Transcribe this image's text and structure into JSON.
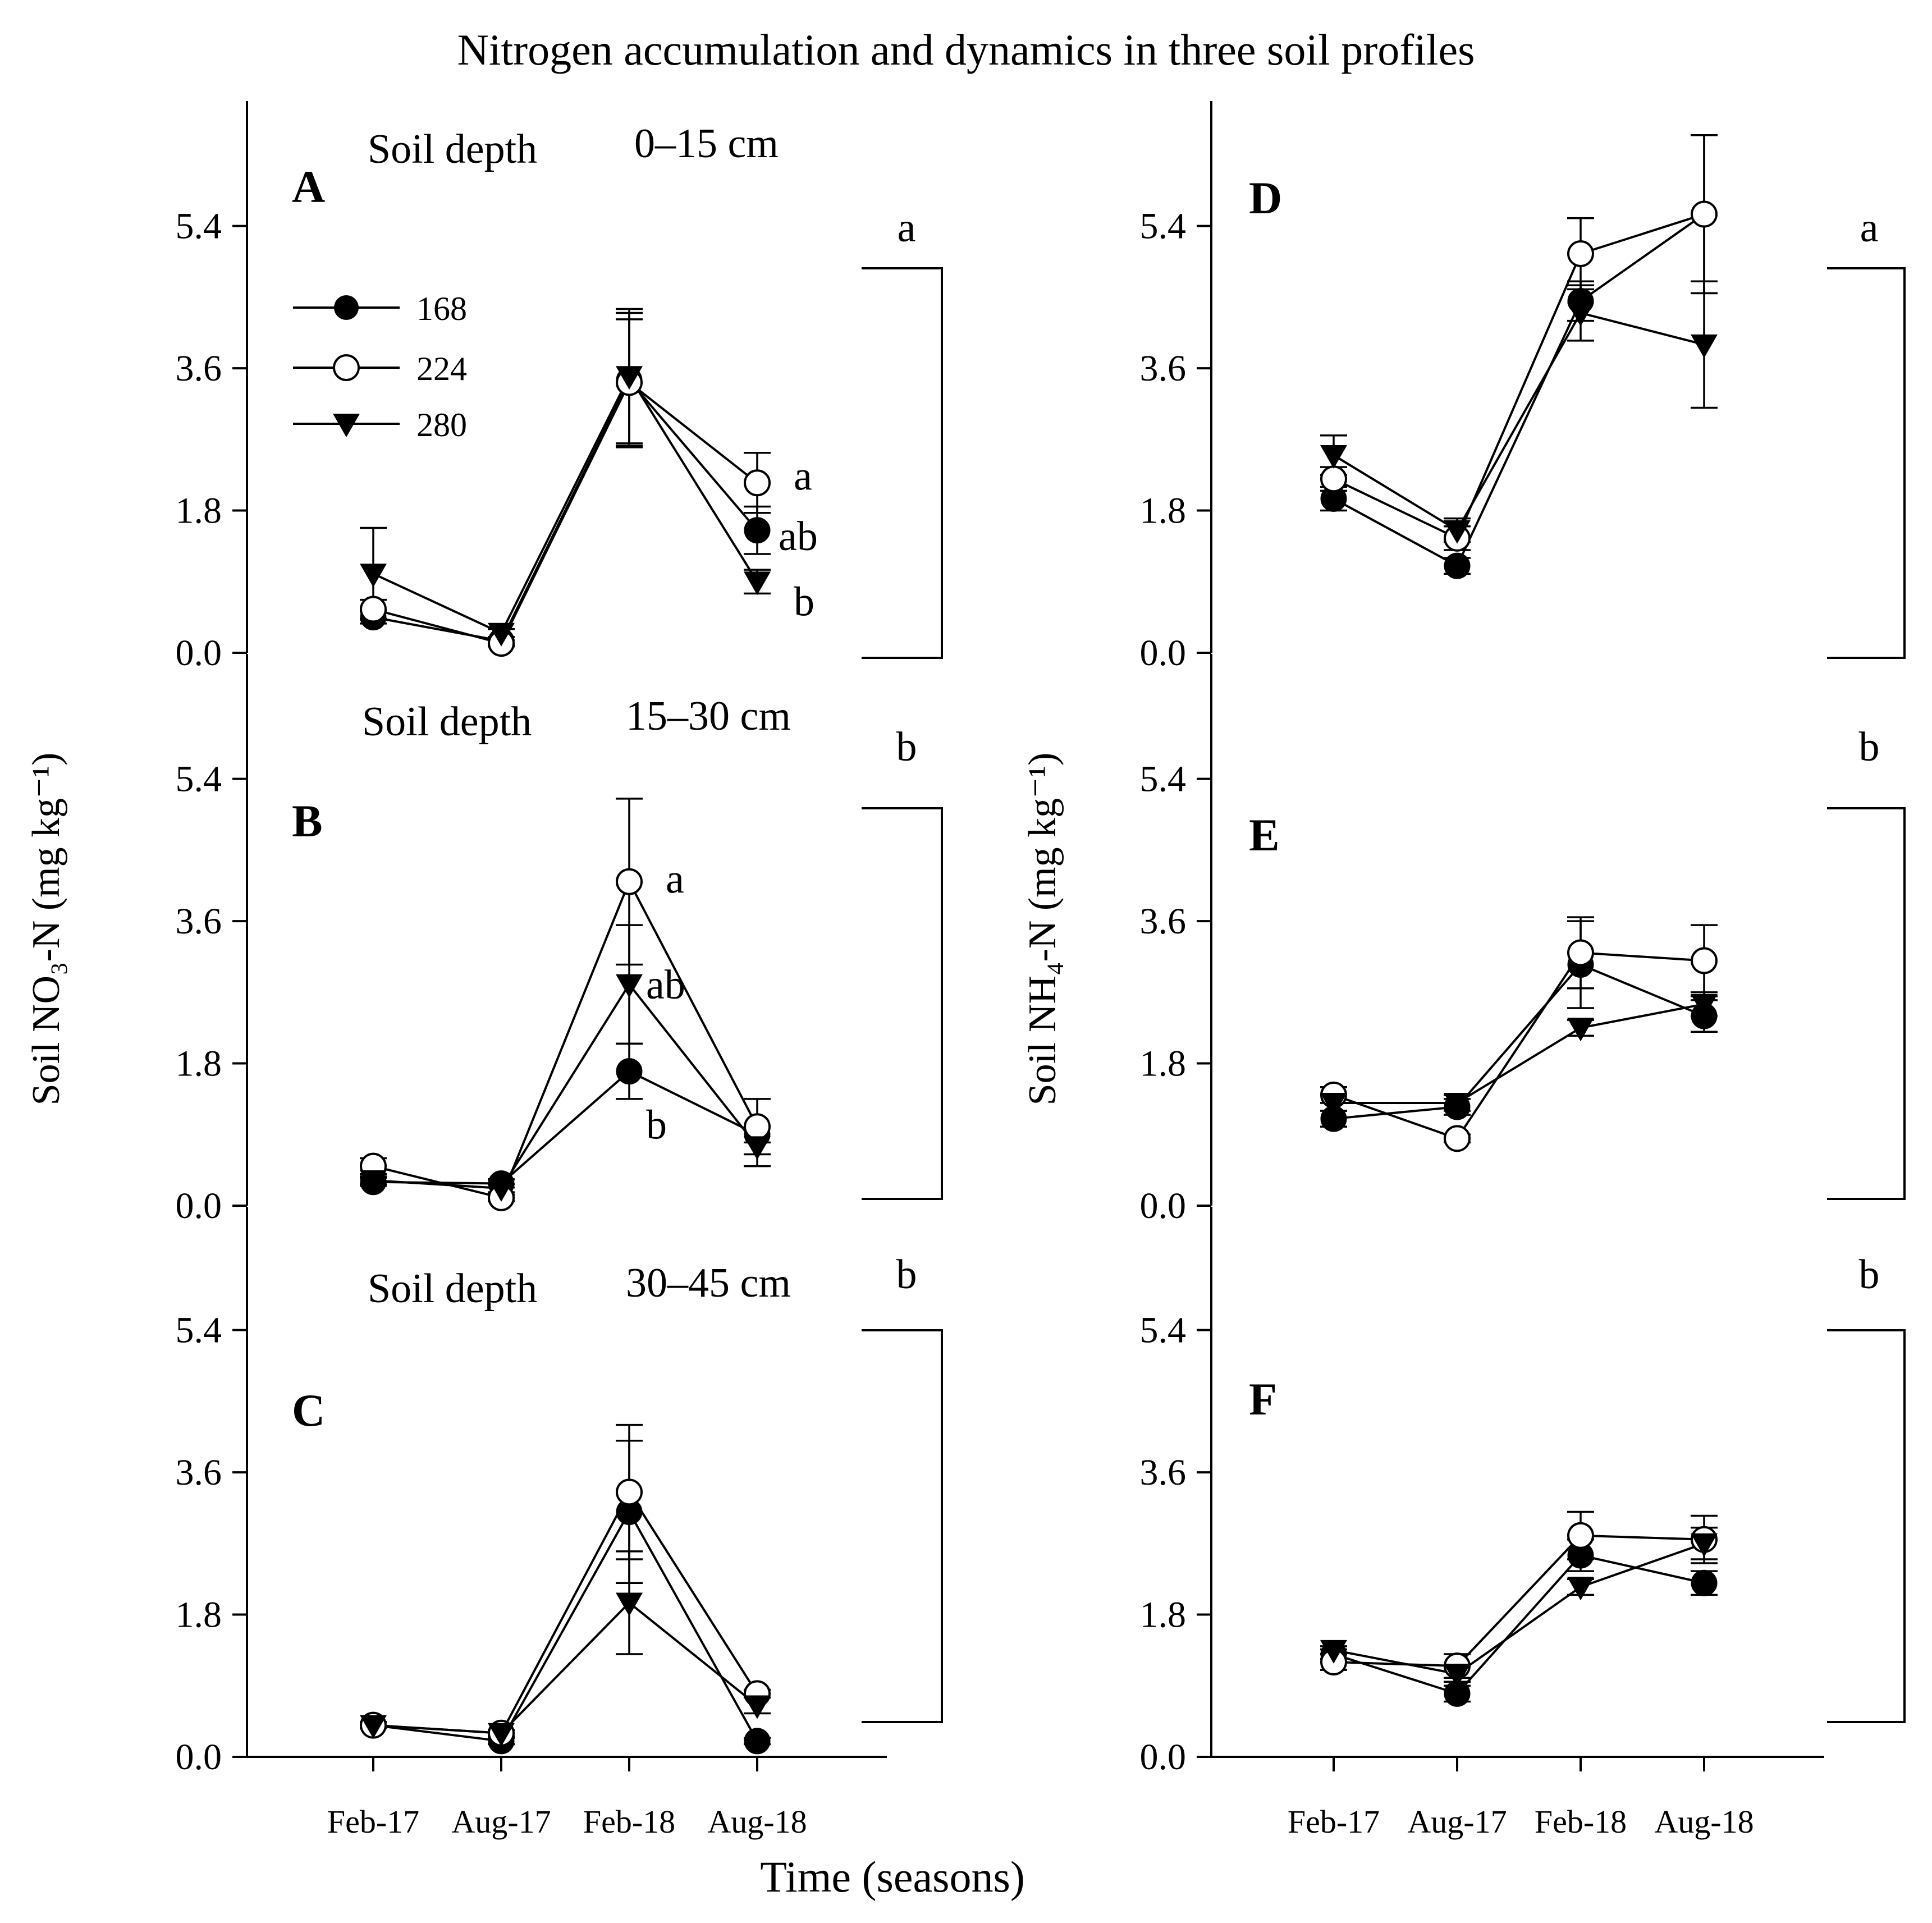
{
  "figure": {
    "title": "Nitrogen accumulation and dynamics in three soil profiles",
    "xlabel": "Time (seasons)"
  },
  "legend": {
    "items": [
      {
        "label": "168",
        "marker": "filled-circle"
      },
      {
        "label": "224",
        "marker": "open-circle"
      },
      {
        "label": "280",
        "marker": "filled-triangle-down"
      }
    ]
  },
  "colors": {
    "ink": "#000000",
    "background": "#ffffff"
  },
  "chart_data": [
    {
      "panel": "A",
      "type": "line",
      "column": "left",
      "depth_label": "Soil depth",
      "depth_value": "0–15 cm",
      "ylabel": "Soil NO₃-N (mg kg⁻¹)",
      "yticks": [
        "0.0",
        "1.8",
        "3.6",
        "5.4"
      ],
      "ylim": [
        0,
        6.6
      ],
      "categories": [
        "Feb-17",
        "Aug-17",
        "Feb-18",
        "Aug-18"
      ],
      "series": [
        {
          "name": "168",
          "values": [
            0.45,
            0.15,
            3.45,
            1.55
          ],
          "err": [
            0.08,
            0.05,
            0.85,
            0.3
          ]
        },
        {
          "name": "224",
          "values": [
            0.55,
            0.12,
            3.42,
            2.15
          ],
          "err": [
            0.12,
            0.04,
            0.8,
            0.38
          ]
        },
        {
          "name": "280",
          "values": [
            1.0,
            0.25,
            3.5,
            0.9
          ],
          "err": [
            0.58,
            0.05,
            0.85,
            0.15
          ]
        }
      ],
      "point_letters": [
        {
          "text": "a",
          "series": "224",
          "index": 3
        },
        {
          "text": "ab",
          "series": "168",
          "index": 3
        },
        {
          "text": "b",
          "series": "280",
          "index": 3
        }
      ],
      "group_letter": "a"
    },
    {
      "panel": "B",
      "type": "line",
      "column": "left",
      "depth_label": "Soil depth",
      "depth_value": "15–30 cm",
      "ylabel": "Soil NO₃-N (mg kg⁻¹)",
      "yticks": [
        "0.0",
        "1.8",
        "3.6",
        "5.4"
      ],
      "ylim": [
        0,
        6.6
      ],
      "categories": [
        "Feb-17",
        "Aug-17",
        "Feb-18",
        "Aug-18"
      ],
      "series": [
        {
          "name": "168",
          "values": [
            0.3,
            0.28,
            1.7,
            0.9
          ],
          "err": [
            0.05,
            0.05,
            0.35,
            0.1
          ]
        },
        {
          "name": "224",
          "values": [
            0.5,
            0.1,
            4.1,
            1.0
          ],
          "err": [
            0.1,
            0.04,
            1.05,
            0.35
          ]
        },
        {
          "name": "280",
          "values": [
            0.32,
            0.22,
            2.8,
            0.75
          ],
          "err": [
            0.05,
            0.05,
            0.75,
            0.25
          ]
        }
      ],
      "point_letters": [
        {
          "text": "a",
          "series": "224",
          "index": 2
        },
        {
          "text": "ab",
          "series": "280",
          "index": 2
        },
        {
          "text": "b",
          "series": "168",
          "index": 2
        }
      ],
      "group_letter": "b"
    },
    {
      "panel": "C",
      "type": "line",
      "column": "left",
      "depth_label": "Soil depth",
      "depth_value": "30–45 cm",
      "ylabel": "",
      "yticks": [
        "0.0",
        "1.8",
        "3.6",
        "5.4"
      ],
      "ylim": [
        0,
        6.6
      ],
      "categories": [
        "Feb-17",
        "Aug-17",
        "Feb-18",
        "Aug-18"
      ],
      "show_xticks": true,
      "series": [
        {
          "name": "168",
          "values": [
            0.4,
            0.2,
            3.1,
            0.2
          ],
          "err": [
            0.04,
            0.04,
            0.9,
            0.04
          ]
        },
        {
          "name": "224",
          "values": [
            0.4,
            0.3,
            3.35,
            0.8
          ],
          "err": [
            0.04,
            0.04,
            0.85,
            0.05
          ]
        },
        {
          "name": "280",
          "values": [
            0.4,
            0.3,
            1.95,
            0.65
          ],
          "err": [
            0.04,
            0.04,
            0.65,
            0.1
          ]
        }
      ],
      "point_letters": [],
      "group_letter": "b"
    },
    {
      "panel": "D",
      "type": "line",
      "column": "right",
      "depth_label": "",
      "depth_value": "",
      "ylabel": "Soil NH₄-N (mg kg⁻¹)",
      "yticks": [
        "0.0",
        "1.8",
        "3.6",
        "5.4"
      ],
      "ylim": [
        0,
        6.6
      ],
      "categories": [
        "Feb-17",
        "Aug-17",
        "Feb-18",
        "Aug-18"
      ],
      "series": [
        {
          "name": "168",
          "values": [
            1.95,
            1.1,
            4.45,
            5.55
          ],
          "err": [
            0.15,
            0.1,
            0.25,
            1.0
          ]
        },
        {
          "name": "224",
          "values": [
            2.2,
            1.45,
            5.05,
            5.55
          ],
          "err": [
            0.15,
            0.15,
            0.45,
            1.0
          ]
        },
        {
          "name": "280",
          "values": [
            2.5,
            1.55,
            4.3,
            3.9
          ],
          "err": [
            0.25,
            0.15,
            0.35,
            0.8
          ]
        }
      ],
      "point_letters": [],
      "group_letter": "a"
    },
    {
      "panel": "E",
      "type": "line",
      "column": "right",
      "depth_label": "",
      "depth_value": "",
      "ylabel": "Soil NH₄-N (mg kg⁻¹)",
      "yticks": [
        "0.0",
        "1.8",
        "3.6",
        "5.4"
      ],
      "ylim": [
        0,
        6.6
      ],
      "categories": [
        "Feb-17",
        "Aug-17",
        "Feb-18",
        "Aug-18"
      ],
      "series": [
        {
          "name": "168",
          "values": [
            1.1,
            1.25,
            3.05,
            2.4
          ],
          "err": [
            0.1,
            0.1,
            0.55,
            0.2
          ]
        },
        {
          "name": "224",
          "values": [
            1.4,
            0.85,
            3.2,
            3.1
          ],
          "err": [
            0.1,
            0.05,
            0.45,
            0.45
          ]
        },
        {
          "name": "280",
          "values": [
            1.3,
            1.3,
            2.25,
            2.55
          ],
          "err": [
            0.1,
            0.1,
            0.1,
            0.15
          ]
        }
      ],
      "point_letters": [],
      "group_letter": "b"
    },
    {
      "panel": "F",
      "type": "line",
      "column": "right",
      "depth_label": "",
      "depth_value": "",
      "ylabel": "",
      "yticks": [
        "0.0",
        "1.8",
        "3.6",
        "5.4"
      ],
      "ylim": [
        0,
        6.6
      ],
      "categories": [
        "Feb-17",
        "Aug-17",
        "Feb-18",
        "Aug-18"
      ],
      "show_xticks": true,
      "series": [
        {
          "name": "168",
          "values": [
            1.3,
            0.8,
            2.55,
            2.2
          ],
          "err": [
            0.06,
            0.1,
            0.2,
            0.15
          ]
        },
        {
          "name": "224",
          "values": [
            1.2,
            1.15,
            2.8,
            2.75
          ],
          "err": [
            0.1,
            0.15,
            0.3,
            0.3
          ]
        },
        {
          "name": "280",
          "values": [
            1.35,
            1.05,
            2.15,
            2.7
          ],
          "err": [
            0.05,
            0.1,
            0.1,
            0.2
          ]
        }
      ],
      "point_letters": [],
      "group_letter": "b"
    }
  ]
}
